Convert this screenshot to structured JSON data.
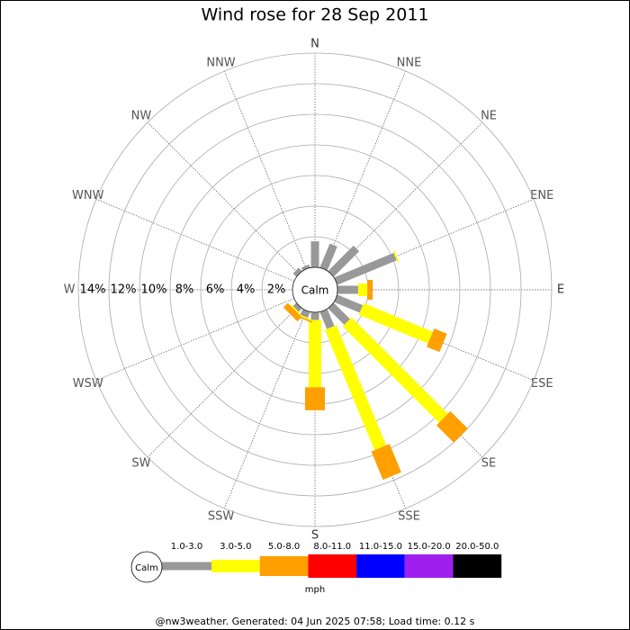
{
  "chart_data": {
    "type": "wind_rose",
    "title": "Wind rose for 28 Sep 2011",
    "directions": [
      "N",
      "NNE",
      "NE",
      "ENE",
      "E",
      "ESE",
      "SE",
      "SSE",
      "S",
      "SSW",
      "SW",
      "WSW",
      "W",
      "WNW",
      "NW",
      "NNW"
    ],
    "center_label": "Calm",
    "rlim": [
      0,
      14
    ],
    "rticks": [
      {
        "value": 2,
        "label": "2%"
      },
      {
        "value": 4,
        "label": "4%"
      },
      {
        "value": 6,
        "label": "6%"
      },
      {
        "value": 8,
        "label": "8%"
      },
      {
        "value": 10,
        "label": "10%"
      },
      {
        "value": 12,
        "label": "12%"
      },
      {
        "value": 14,
        "label": "14%"
      }
    ],
    "series": [
      {
        "name": "1.0-3.0",
        "color": "#999999",
        "values": [
          1.7,
          1.7,
          2.35,
          4.2,
          1.35,
          1.8,
          1.5,
          1.2,
          0.5,
          0.4,
          0.3,
          0,
          0,
          0,
          0.3,
          0.2
        ]
      },
      {
        "name": "3.0-5.0",
        "color": "#ffff00",
        "values": [
          0,
          0,
          0,
          0.1,
          0.6,
          4.9,
          8.9,
          8.5,
          4.4,
          0.1,
          0.1,
          0,
          0,
          0,
          0,
          0
        ]
      },
      {
        "name": "5.0-8.0",
        "color": "#ff9f00",
        "values": [
          0,
          0,
          0,
          0,
          0.35,
          0.9,
          1.6,
          2.0,
          1.5,
          0.1,
          0.4,
          0,
          0,
          0,
          0,
          0
        ]
      },
      {
        "name": "8.0-11.0",
        "color": "#ff0000",
        "values": [
          0,
          0,
          0,
          0,
          0,
          0,
          0,
          0,
          0,
          0,
          0,
          0,
          0,
          0,
          0,
          0
        ]
      },
      {
        "name": "11.0-15.0",
        "color": "#0000ff",
        "values": [
          0,
          0,
          0,
          0,
          0,
          0,
          0,
          0,
          0,
          0,
          0,
          0,
          0,
          0,
          0,
          0
        ]
      },
      {
        "name": "15.0-20.0",
        "color": "#9f1fef",
        "values": [
          0,
          0,
          0,
          0,
          0,
          0,
          0,
          0,
          0,
          0,
          0,
          0,
          0,
          0,
          0,
          0
        ]
      },
      {
        "name": "20.0-50.0",
        "color": "#000000",
        "values": [
          0,
          0,
          0,
          0,
          0,
          0,
          0,
          0,
          0,
          0,
          0,
          0,
          0,
          0,
          0,
          0
        ]
      }
    ],
    "unit_label": "mph",
    "footer": "@nw3weather. Generated: 04 Jun 2025 07:58; Load time: 0.12 s"
  }
}
